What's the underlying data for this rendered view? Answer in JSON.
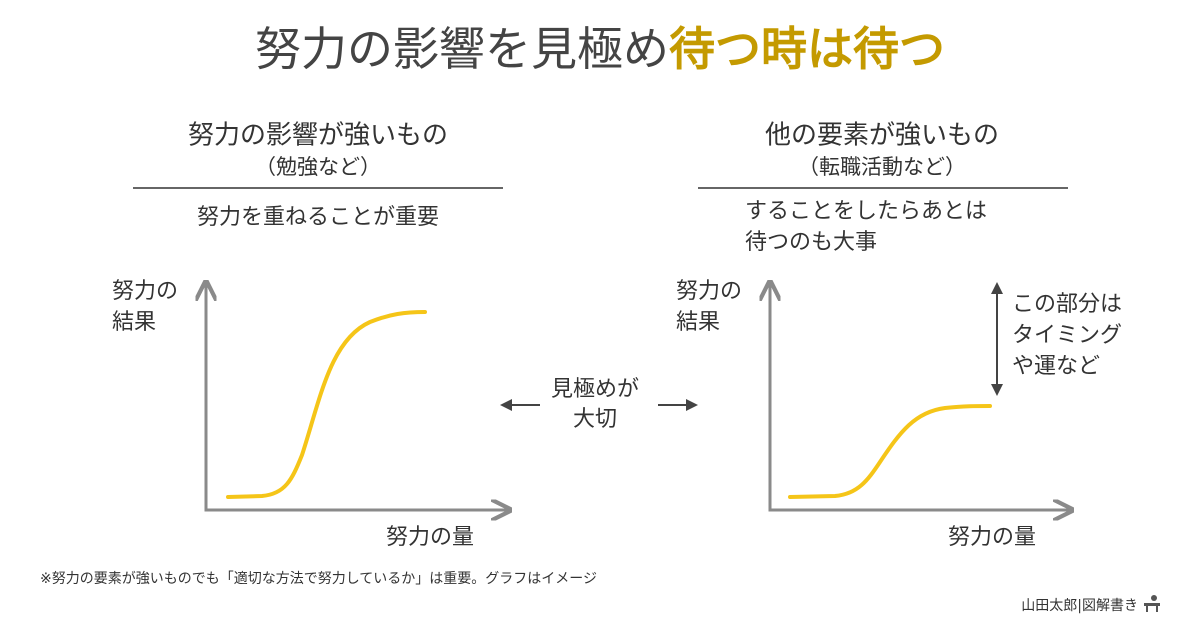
{
  "title": {
    "part1": "努力の影響を見極め",
    "part2": "待つ時は待つ"
  },
  "left": {
    "heading": "努力の影響が強いもの",
    "subheading": "（勉強など）",
    "description": [
      "努力を重ねることが重要"
    ],
    "y_label": [
      "努力の",
      "結果"
    ],
    "x_label": "努力の量"
  },
  "middle": {
    "label": [
      "見極めが",
      "大切"
    ]
  },
  "right": {
    "heading": "他の要素が強いもの",
    "subheading": "（転職活動など）",
    "description": [
      "することをしたらあとは",
      "待つのも大事"
    ],
    "y_label": [
      "努力の",
      "結果"
    ],
    "x_label": "努力の量",
    "annotation": [
      "この部分は",
      "タイミング",
      "や運など"
    ]
  },
  "footnote": "※努力の要素が強いものでも「適切な方法で努力しているか」は重要。グラフはイメージ",
  "credit": "山田太郎|図解書き"
}
